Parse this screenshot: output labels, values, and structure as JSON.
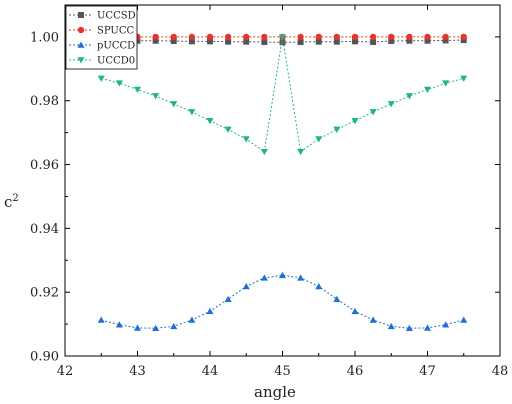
{
  "chart_data": {
    "type": "line",
    "title": "",
    "xlabel": "angle",
    "ylabel": "c2",
    "ylabel_base": "c",
    "ylabel_sup": "2",
    "xlim": [
      42,
      48
    ],
    "ylim": [
      0.9,
      1.01
    ],
    "xticks": [
      42,
      43,
      44,
      45,
      46,
      47,
      48
    ],
    "yticks": [
      0.9,
      0.92,
      0.94,
      0.96,
      0.98,
      1.0
    ],
    "xtick_labels": [
      "42",
      "43",
      "44",
      "45",
      "46",
      "47",
      "48"
    ],
    "ytick_labels": [
      "0.90",
      "0.92",
      "0.94",
      "0.96",
      "0.98",
      "1.00"
    ],
    "grid": false,
    "legend_position": "top-left",
    "x": [
      42.5,
      42.75,
      43.0,
      43.25,
      43.5,
      43.75,
      44.0,
      44.25,
      44.5,
      44.75,
      45.0,
      45.25,
      45.5,
      45.75,
      46.0,
      46.25,
      46.5,
      46.75,
      47.0,
      47.25,
      47.5
    ],
    "series": [
      {
        "name": "UCCSD",
        "color": "#555555",
        "marker": "square",
        "values": [
          0.999,
          0.999,
          0.9988,
          0.9988,
          0.9987,
          0.9986,
          0.9986,
          0.9985,
          0.9985,
          0.9984,
          0.9983,
          0.9984,
          0.9985,
          0.9985,
          0.9986,
          0.9984,
          0.9987,
          0.9988,
          0.9988,
          0.9989,
          0.999
        ]
      },
      {
        "name": "SPUCC",
        "color": "#e8332d",
        "marker": "circle",
        "values": [
          1.0,
          1.0,
          1.0,
          1.0,
          1.0,
          1.0,
          1.0,
          1.0,
          1.0,
          1.0,
          1.0,
          1.0,
          1.0,
          1.0,
          1.0,
          1.0,
          1.0,
          1.0,
          1.0,
          1.0,
          1.0
        ]
      },
      {
        "name": "pUCCD",
        "color": "#1f6fd6",
        "marker": "triangle-up",
        "values": [
          0.9113,
          0.9098,
          0.9088,
          0.9087,
          0.9093,
          0.9113,
          0.914,
          0.9178,
          0.9218,
          0.9245,
          0.9253,
          0.9245,
          0.9218,
          0.9178,
          0.914,
          0.9113,
          0.9093,
          0.9087,
          0.9088,
          0.9098,
          0.9113
        ]
      },
      {
        "name": "UCCD0",
        "color": "#1fb584",
        "marker": "triangle-down",
        "values": [
          0.987,
          0.9855,
          0.9835,
          0.9815,
          0.979,
          0.9765,
          0.9737,
          0.971,
          0.968,
          0.964,
          1.0,
          0.964,
          0.968,
          0.971,
          0.9737,
          0.9765,
          0.979,
          0.9815,
          0.9835,
          0.9855,
          0.987
        ]
      }
    ]
  }
}
